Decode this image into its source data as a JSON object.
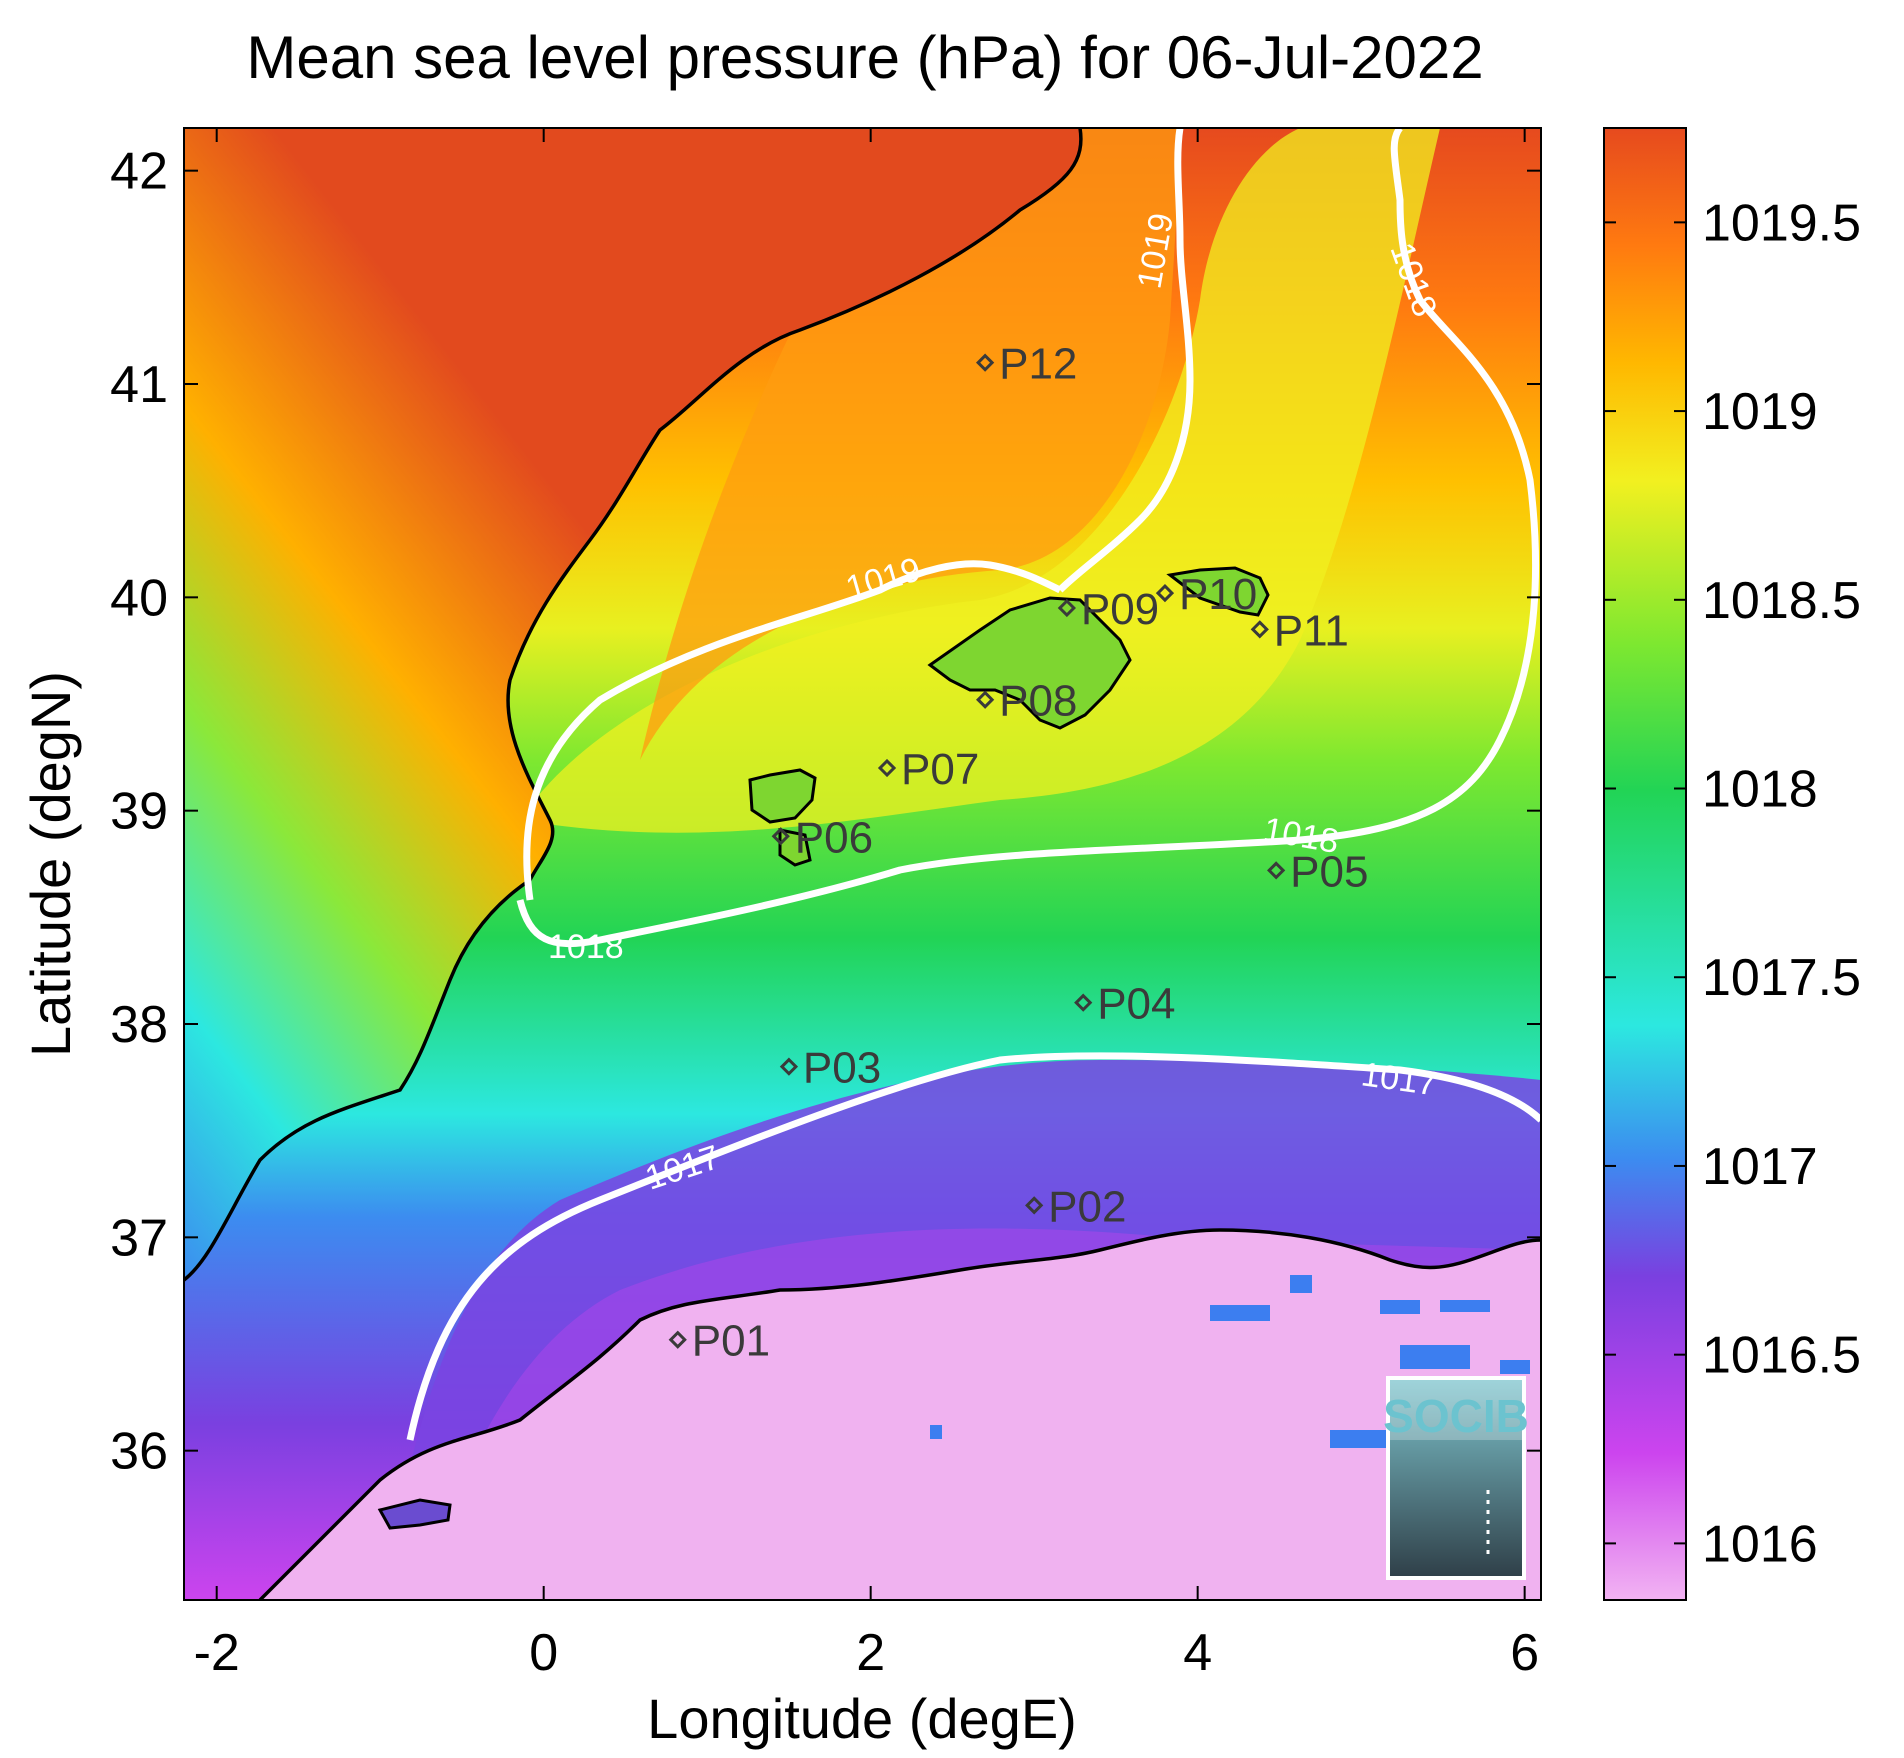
{
  "title": "Mean sea level pressure (hPa) for 06-Jul-2022",
  "map": {
    "xlabel": "Longitude (degE)",
    "ylabel": "Latitude (degN)",
    "xlim": [
      -2.2,
      6.1
    ],
    "ylim": [
      35.3,
      42.2
    ],
    "xticks": [
      -2,
      0,
      2,
      4,
      6
    ],
    "yticks": [
      36,
      37,
      38,
      39,
      40,
      41,
      42
    ],
    "variable": "Mean sea level pressure",
    "units": "hPa",
    "date": "06-Jul-2022"
  },
  "colorbar": {
    "range": [
      1015.85,
      1019.75
    ],
    "ticks": [
      1016,
      1016.5,
      1017,
      1017.5,
      1018,
      1018.5,
      1019,
      1019.5
    ],
    "tick_labels": [
      "1016",
      "1016.5",
      "1017",
      "1017.5",
      "1018",
      "1018.5",
      "1019",
      "1019.5"
    ],
    "colormap": [
      "#f2b3f2",
      "#cc44ee",
      "#7a40e0",
      "#3c8cf0",
      "#2ce8e0",
      "#22d455",
      "#7ee830",
      "#f2f020",
      "#ffb800",
      "#ff7a10",
      "#e64a1e"
    ]
  },
  "contours": [
    {
      "level": 1017,
      "label": "1017"
    },
    {
      "level": 1018,
      "label": "1018"
    },
    {
      "level": 1019,
      "label": "1019"
    }
  ],
  "stations": [
    {
      "id": "P01",
      "lon": 0.82,
      "lat": 36.52
    },
    {
      "id": "P02",
      "lon": 3.0,
      "lat": 37.15
    },
    {
      "id": "P03",
      "lon": 1.5,
      "lat": 37.8
    },
    {
      "id": "P04",
      "lon": 3.3,
      "lat": 38.1
    },
    {
      "id": "P05",
      "lon": 4.48,
      "lat": 38.72
    },
    {
      "id": "P06",
      "lon": 1.45,
      "lat": 38.88
    },
    {
      "id": "P07",
      "lon": 2.1,
      "lat": 39.2
    },
    {
      "id": "P08",
      "lon": 2.7,
      "lat": 39.52
    },
    {
      "id": "P09",
      "lon": 3.2,
      "lat": 39.95
    },
    {
      "id": "P10",
      "lon": 3.8,
      "lat": 40.02
    },
    {
      "id": "P11",
      "lon": 4.38,
      "lat": 39.85
    },
    {
      "id": "P12",
      "lon": 2.7,
      "lat": 41.1
    }
  ],
  "logo": {
    "text": "SOCIB"
  }
}
